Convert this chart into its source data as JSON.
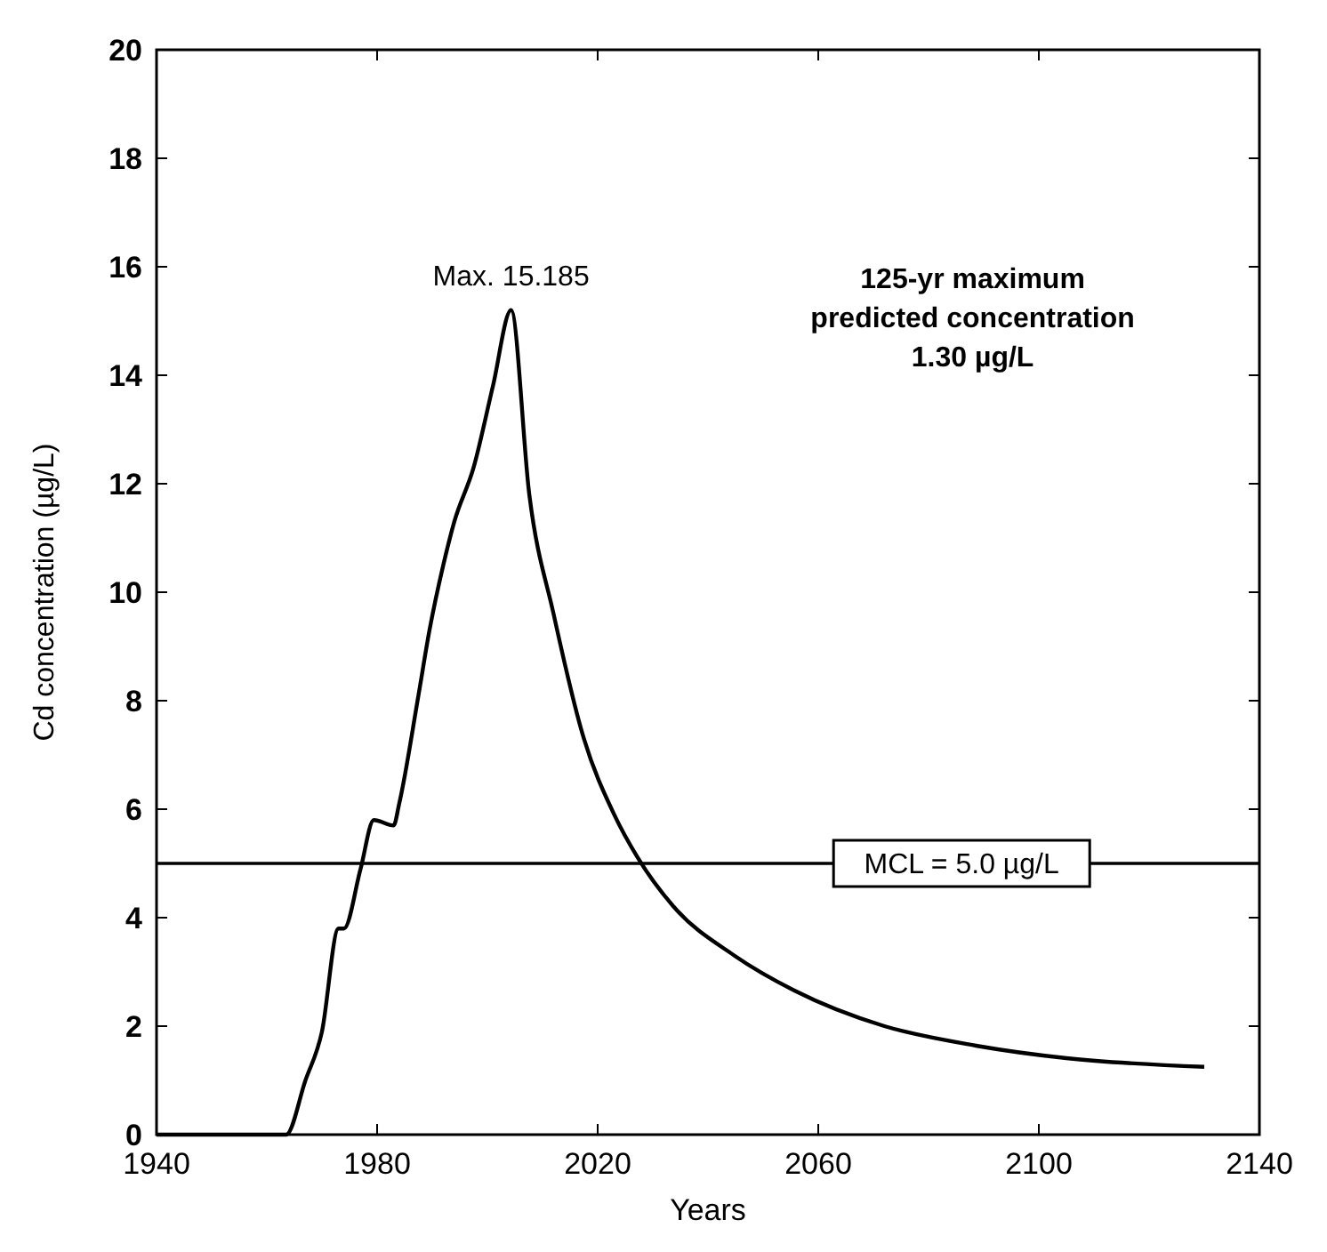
{
  "chart_data": {
    "type": "line",
    "xlabel": "Years",
    "ylabel": "Cd concentration (µg/L)",
    "xlim": [
      1940,
      2140
    ],
    "xticks": [
      1940,
      1980,
      2020,
      2060,
      2100,
      2140
    ],
    "ylim": [
      0,
      20
    ],
    "yticks": [
      0,
      2,
      4,
      6,
      8,
      10,
      12,
      14,
      16,
      18,
      20
    ],
    "grid": false,
    "marker": "none",
    "line_style": "solid",
    "series": [
      {
        "color": "#000000",
        "x": [
          1940,
          1963.5,
          1967,
          1970,
          1973,
          1974,
          1977,
          1979.4,
          1983,
          1984,
          1987.5,
          1989.5,
          1992,
          1994,
          1997.5,
          2001,
          2004.3,
          2007.6,
          2012,
          2017.5,
          2023,
          2027.3,
          2033.8,
          2044.8,
          2055.6,
          2072,
          2088.6,
          2105,
          2130
        ],
        "values": [
          0,
          0,
          1,
          1.9,
          3.8,
          3.8,
          4.9,
          5.8,
          5.7,
          6.1,
          8.1,
          9.3,
          10.5,
          11.3,
          12.3,
          13.8,
          15.2,
          11.8,
          9.6,
          7.3,
          5.9,
          5.1,
          4.2,
          3.3,
          2.66,
          2.0,
          1.64,
          1.41,
          1.25
        ]
      }
    ],
    "ref_lines": [
      {
        "axis": "y",
        "value": 5.0,
        "label": "MCL = 5.0 µg/L",
        "color": "#000000"
      }
    ],
    "annotations": [
      {
        "text": "Max. 15.185",
        "x": 2004.3,
        "y": 15.2
      },
      "125-yr maximum\npredicted concentration\n1.30 µg/L"
    ]
  }
}
